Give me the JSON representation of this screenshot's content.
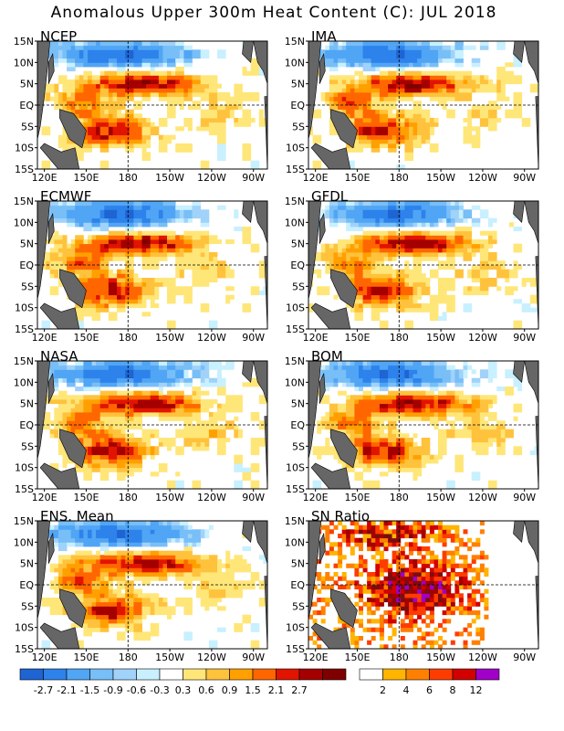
{
  "title": "Anomalous Upper 300m Heat Content (C): JUL 2018",
  "axes": {
    "lat_ticks": [
      "15N",
      "10N",
      "5N",
      "EQ",
      "5S",
      "10S",
      "15S"
    ],
    "lon_ticks": [
      "120E",
      "150E",
      "180",
      "150W",
      "120W",
      "90W"
    ]
  },
  "panels": [
    {
      "name": "NCEP",
      "kind": "anom"
    },
    {
      "name": "JMA",
      "kind": "anom"
    },
    {
      "name": "ECMWF",
      "kind": "anom"
    },
    {
      "name": "GFDL",
      "kind": "anom"
    },
    {
      "name": "NASA",
      "kind": "anom"
    },
    {
      "name": "BOM",
      "kind": "anom"
    },
    {
      "name": "ENS. Mean",
      "kind": "anom"
    },
    {
      "name": "SN Ratio",
      "kind": "sn"
    }
  ],
  "colors": {
    "land": "#666666",
    "anom_neg": [
      "#1e64d2",
      "#2d82eb",
      "#50a5f5",
      "#78bef7",
      "#a0d2fa",
      "#c8f0ff"
    ],
    "anom_pos": [
      "#ffe678",
      "#ffc23c",
      "#ffa000",
      "#ff6600",
      "#e11400",
      "#a50000",
      "#7f0000"
    ],
    "sn": [
      "#ffffff",
      "#ffb400",
      "#ff8000",
      "#ff3c00",
      "#d20000",
      "#a50000",
      "#7a0e0e",
      "#a000c8"
    ]
  },
  "anom_legend": {
    "labels": [
      "-2.7",
      "-2.1",
      "-1.5",
      "-0.9",
      "-0.6",
      "-0.3",
      "0.3",
      "0.6",
      "0.9",
      "1.5",
      "2.1",
      "2.7"
    ]
  },
  "sn_legend": {
    "labels": [
      "2",
      "4",
      "6",
      "8",
      "12"
    ]
  }
}
